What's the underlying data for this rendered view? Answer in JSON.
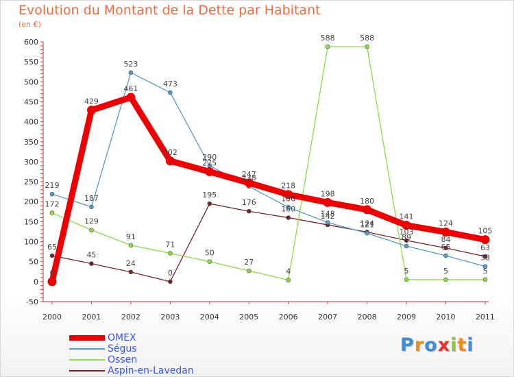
{
  "title": "Evolution du Montant de la Dette par Habitant",
  "unit": "(en €)",
  "chart_data": {
    "type": "line",
    "x": [
      "2000",
      "2001",
      "2002",
      "2003",
      "2004",
      "2005",
      "2006",
      "2007",
      "2008",
      "2009",
      "2010",
      "2011"
    ],
    "ylim": [
      -50,
      600
    ],
    "yticks": [
      -50,
      0,
      50,
      100,
      150,
      200,
      250,
      300,
      350,
      400,
      450,
      500,
      550,
      600
    ],
    "grid": false,
    "legend_position": "bottom-left",
    "series": [
      {
        "name": "OMEX",
        "color": "#ee0000",
        "values": [
          0,
          429,
          461,
          302,
          275,
          247,
          218,
          198,
          180,
          141,
          124,
          105
        ]
      },
      {
        "name": "Ségus",
        "color": "#5599cc",
        "values": [
          219,
          187,
          523,
          473,
          290,
          238,
          186,
          148,
          121,
          89,
          65,
          38
        ]
      },
      {
        "name": "Ossen",
        "color": "#88dd44",
        "values": [
          172,
          129,
          91,
          71,
          50,
          27,
          4,
          588,
          588,
          5,
          5,
          5
        ]
      },
      {
        "name": "Aspin-en-Lavedan",
        "color": "#772222",
        "values": [
          65,
          45,
          24,
          0,
          195,
          176,
          160,
          142,
          124,
          103,
          84,
          63
        ]
      }
    ]
  },
  "logo": {
    "letters": [
      "P",
      "r",
      "o",
      "x",
      "i",
      "t",
      "i"
    ],
    "colors": [
      "#3a8fd8",
      "#f28b1e",
      "#3a8fd8",
      "#e3342f",
      "#8cc63f",
      "#f28b1e",
      "#3a8fd8"
    ]
  }
}
